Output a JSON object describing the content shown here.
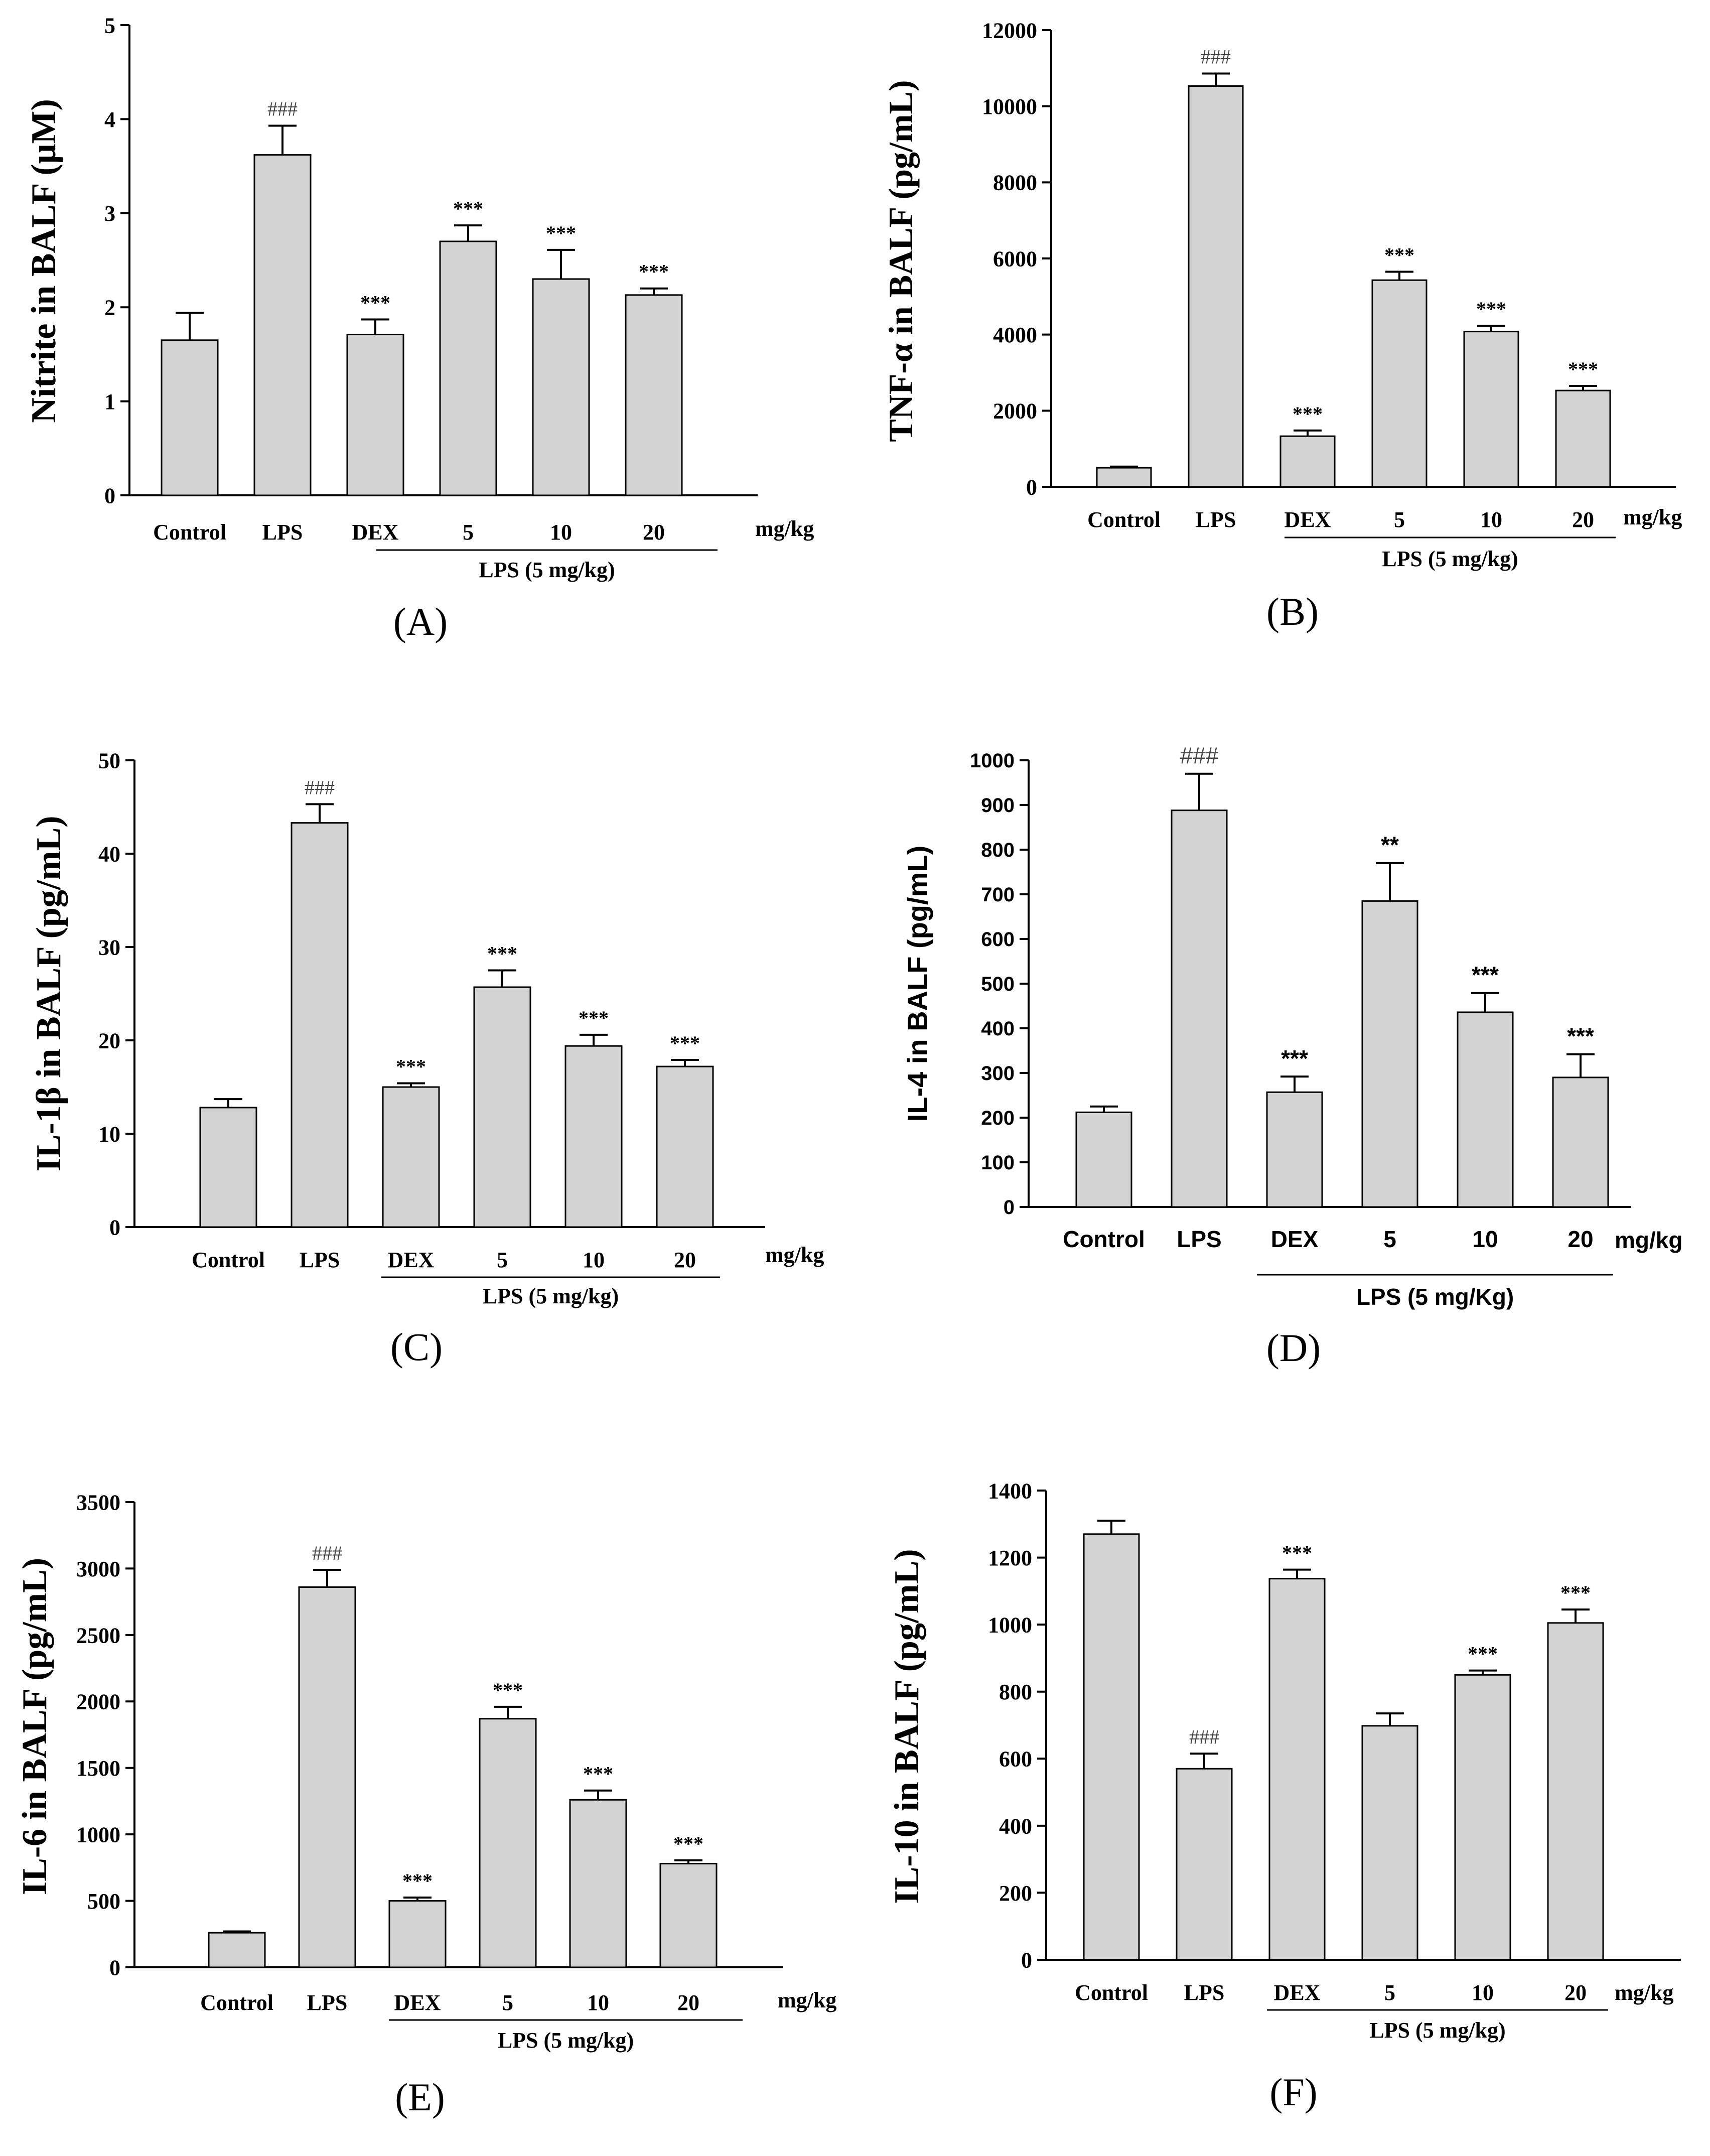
{
  "chart_data": [
    {
      "type": "bar",
      "panel_label": "(A)",
      "ylabel": "Nitrite  in  BALF  (μM)",
      "categories": [
        "Control",
        "LPS",
        "DEX",
        "5",
        "10",
        "20"
      ],
      "values": [
        1.65,
        3.62,
        1.71,
        2.7,
        2.3,
        2.13
      ],
      "errors": [
        0.29,
        0.31,
        0.16,
        0.17,
        0.31,
        0.07
      ],
      "annotations": [
        "",
        "###",
        "***",
        "***",
        "***",
        "***"
      ],
      "unit_label": "mg/kg",
      "group_label": "LPS (5 mg/kg)",
      "ylim": [
        0,
        5
      ],
      "yticks": [
        0,
        1,
        2,
        3,
        4,
        5
      ]
    },
    {
      "type": "bar",
      "panel_label": "(B)",
      "ylabel": "TNF-α  in  BALF  (pg/mL)",
      "categories": [
        "Control",
        "LPS",
        "DEX",
        "5",
        "10",
        "20"
      ],
      "values": [
        500,
        10530,
        1330,
        5430,
        4080,
        2530
      ],
      "errors": [
        30,
        330,
        150,
        220,
        150,
        120
      ],
      "annotations": [
        "",
        "###",
        "***",
        "***",
        "***",
        "***"
      ],
      "unit_label": "mg/kg",
      "group_label": "LPS (5 mg/kg)",
      "ylim": [
        0,
        12000
      ],
      "yticks": [
        0,
        2000,
        4000,
        6000,
        8000,
        10000,
        12000
      ]
    },
    {
      "type": "bar",
      "panel_label": "(C)",
      "ylabel": "IL-1β  in  BALF  (pg/mL)",
      "categories": [
        "Control",
        "LPS",
        "DEX",
        "5",
        "10",
        "20"
      ],
      "values": [
        12.8,
        43.3,
        15.0,
        25.7,
        19.4,
        17.2
      ],
      "errors": [
        0.9,
        2.0,
        0.4,
        1.8,
        1.2,
        0.7
      ],
      "annotations": [
        "",
        "###",
        "***",
        "***",
        "***",
        "***"
      ],
      "unit_label": "mg/kg",
      "group_label": "LPS (5 mg/kg)",
      "ylim": [
        0,
        50
      ],
      "yticks": [
        0,
        10,
        20,
        30,
        40,
        50
      ]
    },
    {
      "type": "bar",
      "panel_label": "(D)",
      "ylabel": "IL-4 in BALF (pg/mL)",
      "categories": [
        "Control",
        "LPS",
        "DEX",
        "5",
        "10",
        "20"
      ],
      "values": [
        212,
        888,
        257,
        685,
        436,
        290
      ],
      "errors": [
        13,
        82,
        35,
        85,
        43,
        52
      ],
      "annotations": [
        "",
        "###",
        "***",
        "**",
        "***",
        "***"
      ],
      "unit_label": "mg/kg",
      "group_label": "LPS (5 mg/Kg)",
      "ylim": [
        0,
        1000
      ],
      "yticks": [
        0,
        100,
        200,
        300,
        400,
        500,
        600,
        700,
        800,
        900,
        1000
      ]
    },
    {
      "type": "bar",
      "panel_label": "(E)",
      "ylabel": "IL-6  in  BALF  (pg/mL)",
      "categories": [
        "Control",
        "LPS",
        "DEX",
        "5",
        "10",
        "20"
      ],
      "values": [
        260,
        2860,
        500,
        1870,
        1260,
        780
      ],
      "errors": [
        10,
        130,
        25,
        90,
        70,
        25
      ],
      "annotations": [
        "",
        "###",
        "***",
        "***",
        "***",
        "***"
      ],
      "unit_label": "mg/kg",
      "group_label": "LPS (5 mg/kg)",
      "ylim": [
        0,
        3500
      ],
      "yticks": [
        0,
        500,
        1000,
        1500,
        2000,
        2500,
        3000,
        3500
      ]
    },
    {
      "type": "bar",
      "panel_label": "(F)",
      "ylabel": "IL-10  in  BALF  (pg/mL)",
      "categories": [
        "Control",
        "LPS",
        "DEX",
        "5",
        "10",
        "20"
      ],
      "values": [
        1270,
        570,
        1137,
        698,
        850,
        1005
      ],
      "errors": [
        40,
        45,
        27,
        37,
        13,
        40
      ],
      "annotations": [
        "",
        "###",
        "***",
        "",
        "***",
        "***"
      ],
      "unit_label": "mg/kg",
      "group_label": "LPS (5 mg/kg)",
      "ylim": [
        0,
        1400
      ],
      "yticks": [
        0,
        200,
        400,
        600,
        800,
        1000,
        1200,
        1400
      ]
    }
  ],
  "colors": {
    "bar_fill": "#d3d3d3",
    "stroke": "#000000",
    "hash_annotation": "#444444"
  }
}
